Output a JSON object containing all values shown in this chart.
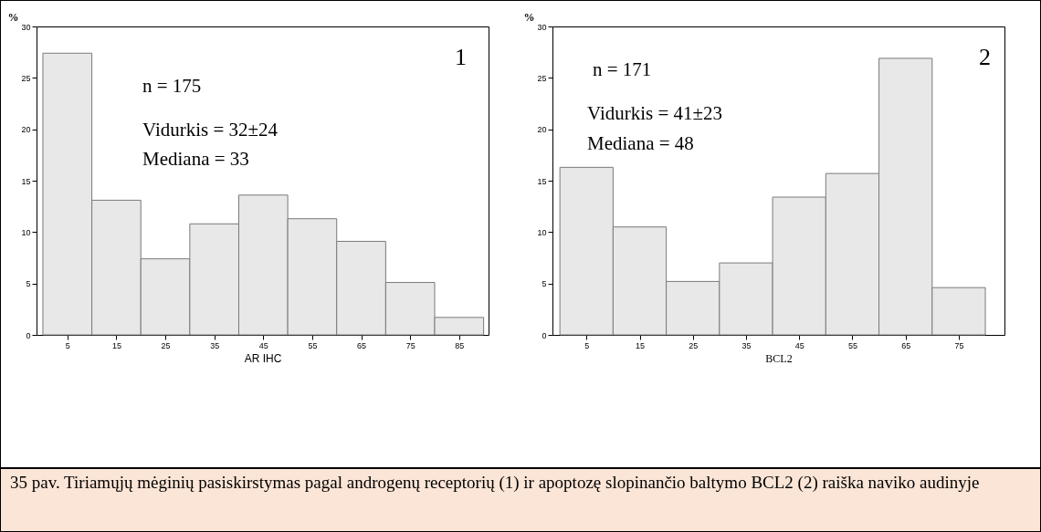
{
  "chart_data": [
    {
      "type": "histogram",
      "bins": [
        0,
        10,
        20,
        30,
        40,
        50,
        60,
        70,
        80,
        90
      ],
      "values": [
        27.4,
        13.1,
        7.4,
        10.8,
        13.6,
        11.3,
        9.1,
        5.1,
        1.7
      ],
      "color": "#e8e8e8",
      "xlabel": "AR IHC",
      "ylabel": "%",
      "xlim": [
        -1.3,
        91
      ],
      "xticks": [
        5,
        15,
        25,
        35,
        45,
        55,
        65,
        75,
        85
      ],
      "ylim": [
        0,
        30
      ],
      "yticks": [
        0,
        5,
        10,
        15,
        20,
        25,
        30
      ],
      "grid": false,
      "annotations": [
        "1",
        "n = 175",
        "Vidurkis = 32±24",
        "Mediana = 33"
      ]
    },
    {
      "type": "histogram",
      "bins": [
        0,
        10,
        20,
        30,
        40,
        50,
        60,
        70,
        80
      ],
      "values": [
        16.3,
        10.5,
        5.2,
        7.0,
        13.4,
        15.7,
        26.9,
        4.6
      ],
      "color": "#e8e8e8",
      "xlabel": "BCL2",
      "ylabel": "%",
      "xlim": [
        -1.4,
        83.6
      ],
      "xticks": [
        5,
        15,
        25,
        35,
        45,
        55,
        65,
        75
      ],
      "ylim": [
        0,
        30
      ],
      "yticks": [
        0,
        5,
        10,
        15,
        20,
        25,
        30
      ],
      "grid": false,
      "annotations": [
        "2",
        "n = 171",
        "Vidurkis = 41±23",
        "Mediana = 48",
        "35 pav. Tiriamųjų mėginių pasiskirstymas pagal androgenų receptorių (1)  ir apoptozę slopinančio baltymo BCL2 (2) raiška naviko audinyje"
      ]
    }
  ]
}
